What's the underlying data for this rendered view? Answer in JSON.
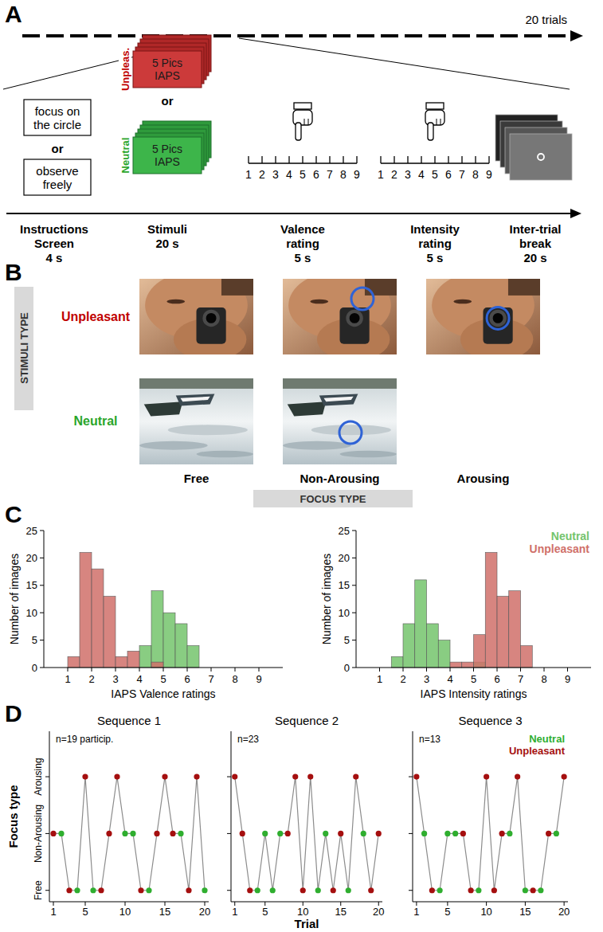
{
  "panel_letters": [
    "A",
    "B",
    "C",
    "D"
  ],
  "panel_a": {
    "trials_label": "20 trials",
    "instructions": [
      "focus on the circle",
      "observe freely"
    ],
    "or": "or",
    "stimuli": [
      {
        "label": "Unpleas.",
        "text": "5 Pics IAPS"
      },
      {
        "label": "Neutral",
        "text": "5 Pics IAPS"
      }
    ],
    "rating_scale": [
      1,
      2,
      3,
      4,
      5,
      6,
      7,
      8,
      9
    ],
    "steps": [
      {
        "label": "Instructions Screen",
        "duration": "4 s"
      },
      {
        "label": "Stimuli",
        "duration": "20 s"
      },
      {
        "label": "Valence rating",
        "duration": "5 s"
      },
      {
        "label": "Intensity rating",
        "duration": "5 s"
      },
      {
        "label": "Inter-trial break",
        "duration": "20 s"
      }
    ]
  },
  "panel_b": {
    "row_title": "STIMULI TYPE",
    "column_title": "FOCUS TYPE",
    "rows": [
      "Unpleasant",
      "Neutral"
    ],
    "columns": [
      "Free",
      "Non-Arousing",
      "Arousing"
    ]
  },
  "chart_data": [
    {
      "type": "histogram",
      "xlabel": "IAPS Valence ratings",
      "ylabel": "Number of images",
      "bins": [
        1,
        1.5,
        2,
        2.5,
        3,
        3.5,
        4,
        4.5,
        5,
        5.5,
        6,
        6.5
      ],
      "series": [
        {
          "color": "#74c46c",
          "values": [
            0,
            0,
            0,
            0,
            0,
            0,
            4,
            14,
            10,
            8,
            4
          ]
        },
        {
          "color": "#d0706a",
          "values": [
            2,
            21,
            18,
            13,
            2,
            3,
            0,
            1,
            0,
            0,
            0
          ]
        }
      ],
      "xlim": [
        0,
        10
      ],
      "ylim": [
        0,
        25
      ],
      "xticks": [
        1,
        2,
        3,
        4,
        5,
        6,
        7,
        8,
        9
      ],
      "yticks": [
        0,
        5,
        10,
        15,
        20,
        25
      ]
    },
    {
      "type": "histogram",
      "xlabel": "IAPS Intensity ratings",
      "ylabel": "Number of images",
      "legend": "upper right",
      "bins": [
        1.5,
        2,
        2.5,
        3,
        3.5,
        4,
        4.5,
        5,
        5.5,
        6,
        6.5,
        7,
        7.5
      ],
      "series": [
        {
          "name": "Neutral",
          "color": "#74c46c",
          "values": [
            2,
            8,
            16,
            8,
            5,
            0,
            0,
            1,
            0,
            0,
            0,
            0
          ]
        },
        {
          "name": "Unpleasant",
          "color": "#d0706a",
          "values": [
            0,
            0,
            0,
            0,
            0,
            1,
            1,
            6,
            21,
            13,
            14,
            4
          ]
        }
      ],
      "xlim": [
        0,
        10
      ],
      "ylim": [
        0,
        25
      ],
      "xticks": [
        1,
        2,
        3,
        4,
        5,
        6,
        7,
        8,
        9
      ],
      "yticks": [
        0,
        5,
        10,
        15,
        20,
        25
      ]
    },
    {
      "type": "line",
      "title": "Sequence 1",
      "annotation": "n=19 particip.",
      "ylabel": "Focus type",
      "x": [
        1,
        2,
        3,
        4,
        5,
        6,
        7,
        8,
        9,
        10,
        11,
        12,
        13,
        14,
        15,
        16,
        17,
        18,
        19,
        20
      ],
      "xlim": [
        0.5,
        20.5
      ],
      "ylim": [
        -0.2,
        2.8
      ],
      "xticks": [
        1,
        5,
        10,
        15,
        20
      ],
      "yticks": [
        {
          "value": 0,
          "label": "Free"
        },
        {
          "value": 1,
          "label": "Non-Arousing"
        },
        {
          "value": 2,
          "label": "Arousing"
        }
      ],
      "series": [
        {
          "type": "line",
          "color": "#8c8c8c",
          "values": [
            1,
            1,
            0,
            0,
            2,
            0,
            0,
            1,
            2,
            1,
            1,
            0,
            0,
            1,
            2,
            1,
            1,
            0,
            2,
            0
          ]
        },
        {
          "type": "scatter",
          "marker": "circle",
          "color": "#2fae2f",
          "x": [
            2,
            4,
            6,
            10,
            11,
            13,
            17,
            20
          ],
          "values": [
            1,
            0,
            0,
            1,
            1,
            0,
            1,
            0
          ]
        },
        {
          "type": "scatter",
          "marker": "circle",
          "color": "#a50f0f",
          "x": [
            1,
            3,
            5,
            7,
            8,
            9,
            12,
            14,
            15,
            16,
            18,
            19
          ],
          "values": [
            1,
            0,
            2,
            0,
            1,
            2,
            0,
            1,
            2,
            1,
            0,
            2
          ]
        }
      ]
    },
    {
      "type": "line",
      "title": "Sequence 2",
      "annotation": "n=23",
      "xlabel": "Trial",
      "tick_labels": "x",
      "x": [
        1,
        2,
        3,
        4,
        5,
        6,
        7,
        8,
        9,
        10,
        11,
        12,
        13,
        14,
        15,
        16,
        17,
        18,
        19,
        20
      ],
      "xlim": [
        0.5,
        20.5
      ],
      "ylim": [
        -0.2,
        2.8
      ],
      "xticks": [
        1,
        5,
        10,
        15,
        20
      ],
      "yticks": [
        0,
        1,
        2
      ],
      "series": [
        {
          "type": "line",
          "color": "#8c8c8c",
          "values": [
            2,
            1,
            0,
            0,
            1,
            0,
            1,
            1,
            2,
            0,
            2,
            0,
            1,
            0,
            1,
            0,
            2,
            1,
            0,
            1
          ]
        },
        {
          "type": "scatter",
          "marker": "circle",
          "color": "#2fae2f",
          "x": [
            4,
            5,
            6,
            7,
            12,
            13,
            16,
            18
          ],
          "values": [
            0,
            1,
            0,
            1,
            0,
            1,
            0,
            1
          ]
        },
        {
          "type": "scatter",
          "marker": "circle",
          "color": "#a50f0f",
          "x": [
            1,
            2,
            3,
            8,
            9,
            10,
            11,
            14,
            15,
            17,
            19,
            20
          ],
          "values": [
            2,
            1,
            0,
            1,
            2,
            0,
            2,
            0,
            1,
            2,
            0,
            1
          ]
        }
      ]
    },
    {
      "type": "line",
      "title": "Sequence 3",
      "annotation": "n=13",
      "tick_labels": "x",
      "legend": "upper right",
      "x": [
        1,
        2,
        3,
        4,
        5,
        6,
        7,
        8,
        9,
        10,
        11,
        12,
        13,
        14,
        15,
        16,
        17,
        18,
        19,
        20
      ],
      "xlim": [
        0.5,
        20.5
      ],
      "ylim": [
        -0.2,
        2.8
      ],
      "xticks": [
        1,
        5,
        10,
        15,
        20
      ],
      "yticks": [
        0,
        1,
        2
      ],
      "series": [
        {
          "type": "line",
          "color": "#8c8c8c",
          "values": [
            2,
            1,
            0,
            0,
            1,
            1,
            1,
            0,
            0,
            2,
            0,
            1,
            1,
            2,
            0,
            0,
            0,
            1,
            1,
            2
          ]
        },
        {
          "name": "Neutral",
          "type": "scatter",
          "marker": "circle",
          "color": "#2fae2f",
          "x": [
            2,
            4,
            5,
            6,
            9,
            13,
            15,
            17,
            19
          ],
          "values": [
            1,
            0,
            1,
            1,
            0,
            1,
            0,
            0,
            1
          ]
        },
        {
          "name": "Unpleasant",
          "type": "scatter",
          "marker": "circle",
          "color": "#a50f0f",
          "x": [
            1,
            3,
            7,
            8,
            10,
            11,
            12,
            14,
            16,
            18,
            20
          ],
          "values": [
            2,
            0,
            1,
            0,
            2,
            0,
            1,
            2,
            0,
            1,
            2
          ]
        }
      ]
    }
  ]
}
